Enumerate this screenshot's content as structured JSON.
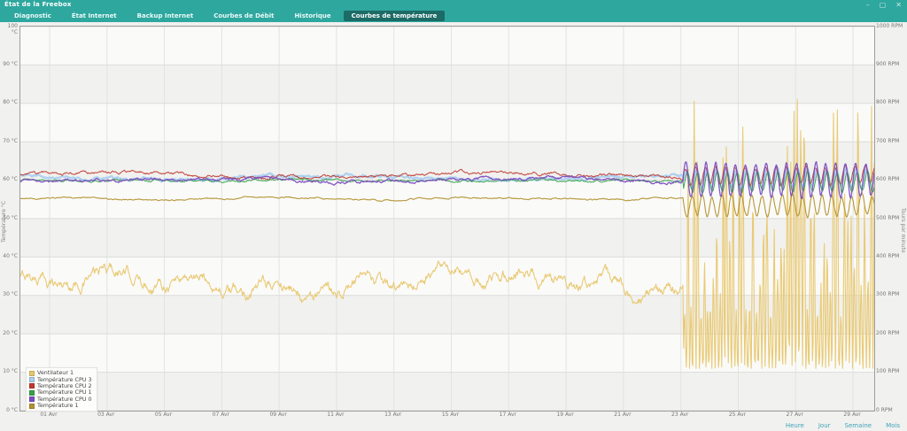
{
  "window": {
    "title": "État de la Freebox",
    "controls": [
      {
        "name": "minimize",
        "glyph": "–"
      },
      {
        "name": "maximize",
        "glyph": "▢"
      },
      {
        "name": "close",
        "glyph": "✕"
      }
    ]
  },
  "tabs": [
    {
      "label": "Diagnostic",
      "active": false
    },
    {
      "label": "État Internet",
      "active": false
    },
    {
      "label": "Backup Internet",
      "active": false
    },
    {
      "label": "Courbes de Débit",
      "active": false
    },
    {
      "label": "Historique",
      "active": false
    },
    {
      "label": "Courbes de température",
      "active": true
    }
  ],
  "footer": {
    "links": [
      "Heure",
      "Jour",
      "Semaine",
      "Mois"
    ]
  },
  "colors": {
    "titlebar": "#2ea79f",
    "active_tab": "#1c6b66",
    "link": "#3fa3b8"
  },
  "chart_data": {
    "type": "line",
    "title": "",
    "x_labels": [
      "01 Avr",
      "03 Avr",
      "05 Avr",
      "07 Avr",
      "09 Avr",
      "11 Avr",
      "13 Avr",
      "15 Avr",
      "17 Avr",
      "19 Avr",
      "21 Avr",
      "23 Avr",
      "25 Avr",
      "27 Avr",
      "29 Avr"
    ],
    "x_first_label_fraction": 0.0342,
    "x_last_label_fraction": 0.9752,
    "grid": true,
    "legend_position": "bottom-left",
    "oscillation_start_fraction": 0.776,
    "y_left": {
      "title": "Température °C",
      "unit": "°C",
      "min": 0,
      "max": 100,
      "ticks": [
        "100 °C",
        "90 °C",
        "80 °C",
        "70 °C",
        "60 °C",
        "50 °C",
        "40 °C",
        "30 °C",
        "20 °C",
        "10 °C",
        "0 °C"
      ]
    },
    "y_right": {
      "title": "Tours par minute",
      "unit": "RPM",
      "min": 0,
      "max": 1000,
      "ticks": [
        "1000 RPM",
        "900 RPM",
        "800 RPM",
        "700 RPM",
        "600 RPM",
        "500 RPM",
        "400 RPM",
        "300 RPM",
        "200 RPM",
        "100 RPM",
        "0 RPM"
      ]
    },
    "series": [
      {
        "name": "Ventilateur 1",
        "axis": "right",
        "color": "#e8c76d",
        "steady_value": 330,
        "steady_range": [
          290,
          425
        ],
        "osc_range": [
          110,
          880
        ]
      },
      {
        "name": "Température CPU 3",
        "axis": "left",
        "color": "#aacfee",
        "steady_value": 60.7,
        "steady_range": [
          59.5,
          62
        ],
        "osc_range": [
          57,
          64
        ]
      },
      {
        "name": "Température CPU 2",
        "axis": "left",
        "color": "#c03a30",
        "steady_value": 61.4,
        "steady_range": [
          60.3,
          62.6
        ],
        "osc_range": [
          58,
          65
        ]
      },
      {
        "name": "Température CPU 1",
        "axis": "left",
        "color": "#37a24c",
        "steady_value": 59.9,
        "steady_range": [
          59,
          61
        ],
        "osc_range": [
          56,
          63
        ]
      },
      {
        "name": "Température CPU 0",
        "axis": "left",
        "color": "#7c4ec2",
        "steady_value": 60.1,
        "steady_range": [
          59,
          61.5
        ],
        "osc_range": [
          54,
          66.5
        ]
      },
      {
        "name": "Température 1",
        "axis": "left",
        "color": "#b3922f",
        "steady_value": 55.2,
        "steady_range": [
          54.5,
          56
        ],
        "osc_range": [
          49,
          57
        ]
      }
    ]
  }
}
